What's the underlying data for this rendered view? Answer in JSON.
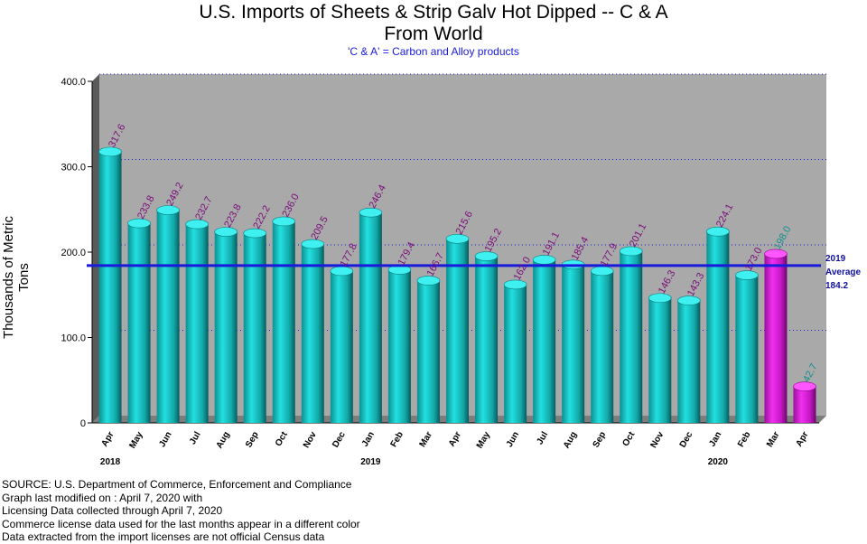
{
  "title_line1": "U.S. Imports of Sheets & Strip Galv Hot Dipped -- C & A",
  "title_line2": "From World",
  "subtitle": "'C & A' = Carbon and Alloy products",
  "source_lines": [
    "SOURCE: U.S. Department of Commerce, Enforcement and Compliance",
    "Graph last modified on : April 7, 2020      with",
    "Licensing Data collected through April 7, 2020",
    "Commerce license data used for the last months appear in a different color",
    "Data extracted from the import licenses are not official Census data"
  ],
  "average_label": {
    "line1": "2019",
    "line2": "Average",
    "line3": "184.2"
  },
  "colors": {
    "census": "#17c3c3",
    "license": "#cc19cc",
    "plot_bg": "#a9a9a9",
    "average_line": "#1a1adb",
    "census_label": "#7a0a7a",
    "license_label": "#138f8f"
  },
  "chart_data": {
    "type": "bar",
    "ylabel": "Thousands of Metric Tons",
    "ylim": [
      0,
      400
    ],
    "yticks": [
      "0",
      "100.0",
      "200.0",
      "300.0",
      "400.0"
    ],
    "categories": [
      "Apr",
      "May",
      "Jun",
      "Jul",
      "Aug",
      "Sep",
      "Oct",
      "Nov",
      "Dec",
      "Jan",
      "Feb",
      "Mar",
      "Apr",
      "May",
      "Jun",
      "Jul",
      "Aug",
      "Sep",
      "Oct",
      "Nov",
      "Dec",
      "Jan",
      "Feb",
      "Mar",
      "Apr"
    ],
    "year_labels": [
      {
        "index": 0,
        "label": "2018"
      },
      {
        "index": 9,
        "label": "2019"
      },
      {
        "index": 21,
        "label": "2020"
      }
    ],
    "values": [
      317.6,
      233.8,
      249.2,
      232.7,
      223.8,
      222.2,
      236.0,
      209.5,
      177.8,
      246.4,
      179.4,
      166.7,
      215.6,
      195.2,
      162.0,
      191.1,
      185.4,
      177.9,
      201.1,
      146.3,
      143.3,
      224.1,
      173.0,
      198.0,
      42.7
    ],
    "data_labels": [
      "317.6",
      "233.8",
      "249.2",
      "232.7",
      "223.8",
      "222.2",
      "236.0",
      "209.5",
      "177.8",
      "246.4",
      "179.4",
      "166.7",
      "215.6",
      "195.2",
      "162.0",
      "191.1",
      "185.4",
      "177.9",
      "201.1",
      "146.3",
      "143.3",
      "224.1",
      "173.0",
      "198.0",
      "42.7"
    ],
    "license_data_from_index": 23,
    "average_line": {
      "label": "2019 Average",
      "value": 184.2
    },
    "grid": true
  }
}
